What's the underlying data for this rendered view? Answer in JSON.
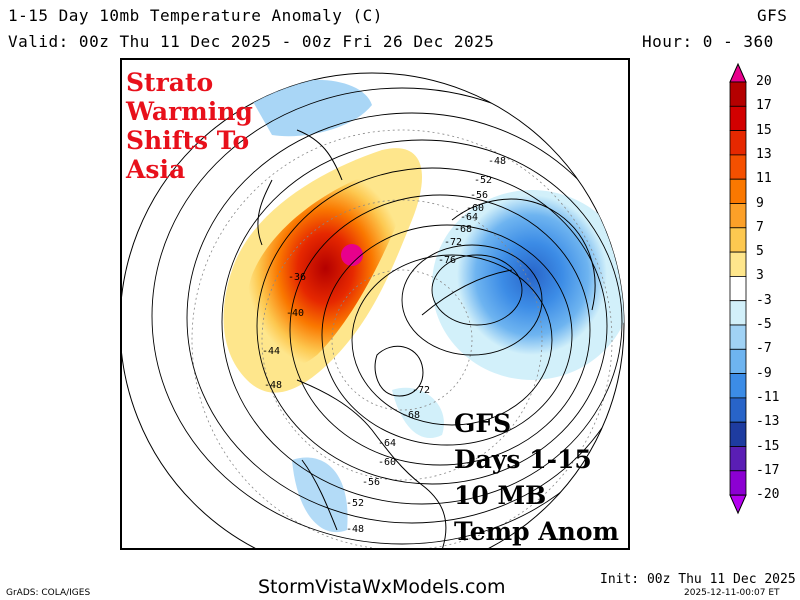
{
  "header": {
    "title": "1-15 Day 10mb Temperature Anomaly (C)",
    "model": "GFS",
    "valid": "Valid: 00z Thu 11 Dec 2025 - 00z Fri 26 Dec 2025",
    "hours": "Hour: 0 - 360"
  },
  "annotations": {
    "red": [
      "Strato",
      "Warming",
      "Shifts To",
      "Asia"
    ],
    "black": [
      "GFS",
      "Days 1-15",
      "10 MB",
      "Temp Anom"
    ]
  },
  "contours": {
    "labels": [
      "-48",
      "-52",
      "-56",
      "-60",
      "-64",
      "-68",
      "-72",
      "-76",
      "-36",
      "-40",
      "-44",
      "-48",
      "-72",
      "-68",
      "-64",
      "-60",
      "-56",
      "-52",
      "-48"
    ]
  },
  "legend": {
    "labels": [
      "20",
      "17",
      "15",
      "13",
      "11",
      "9",
      "7",
      "5",
      "3",
      "-3",
      "-5",
      "-7",
      "-9",
      "-11",
      "-13",
      "-15",
      "-17",
      "-20"
    ],
    "colors": [
      "#e8008c",
      "#b40000",
      "#d20000",
      "#e62800",
      "#f55000",
      "#fa7800",
      "#fca028",
      "#fdc850",
      "#fee68c",
      "#ffffff",
      "#d2f0fa",
      "#a0d2f5",
      "#6eb4f0",
      "#3c8ce6",
      "#2864c8",
      "#1e3ca0",
      "#5a1eb4",
      "#8c00d2",
      "#b400f0"
    ]
  },
  "footer": {
    "grads": "GrADS: COLA/IGES",
    "site": "StormVistaWxModels.com",
    "init": "Init: 00z Thu 11 Dec 2025",
    "stamp": "2025-12-11-00:07 ET"
  }
}
